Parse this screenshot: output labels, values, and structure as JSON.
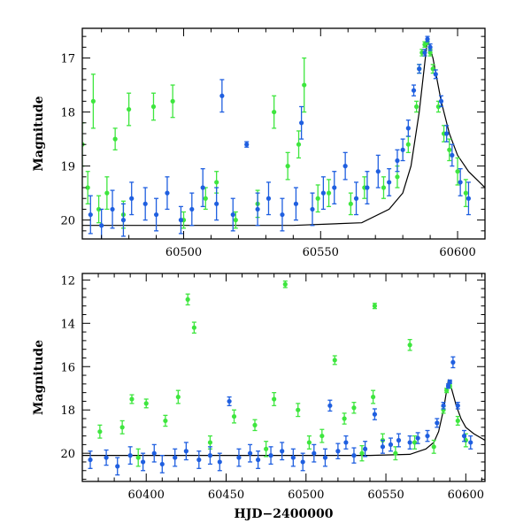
{
  "chart_data": [
    {
      "type": "scatter",
      "panel": "top",
      "xlabel": "",
      "ylabel": "Magnitude",
      "xlim": [
        60463,
        60610
      ],
      "ylim": [
        20.35,
        16.45
      ],
      "y_inverted": true,
      "xticks": [
        60500,
        60550,
        60600
      ],
      "yticks": [
        17,
        18,
        19,
        20
      ],
      "colors": {
        "green": "#3ee63e",
        "blue": "#1f5fe0",
        "model": "#000000"
      },
      "series": [
        {
          "marker": "green-errorbar-point",
          "x": [
            60463,
            60465,
            60467,
            60469,
            60472,
            60475,
            60478,
            60480,
            60489,
            60496,
            60500,
            60508,
            60512,
            60519,
            60527,
            60533,
            60538,
            60542,
            60544,
            60549,
            60553,
            60561,
            60566,
            60573,
            60578,
            60582,
            60585,
            60586,
            60587,
            60588,
            60589,
            60590,
            60591,
            60593,
            60595,
            60597,
            60600,
            60603
          ],
          "y": [
            18.6,
            19.4,
            17.8,
            19.8,
            19.5,
            18.5,
            19.9,
            17.95,
            17.9,
            17.8,
            20.0,
            19.6,
            19.3,
            20.0,
            19.7,
            18.0,
            19.0,
            18.6,
            17.5,
            19.6,
            19.5,
            19.7,
            19.4,
            19.4,
            19.2,
            18.6,
            17.9,
            17.2,
            16.9,
            16.75,
            16.7,
            16.9,
            17.2,
            17.9,
            18.4,
            18.7,
            19.1,
            19.5
          ],
          "yerr": [
            0.4,
            0.3,
            0.5,
            0.25,
            0.3,
            0.2,
            0.25,
            0.3,
            0.25,
            0.3,
            0.15,
            0.2,
            0.2,
            0.15,
            0.25,
            0.3,
            0.25,
            0.25,
            0.5,
            0.25,
            0.25,
            0.2,
            0.2,
            0.2,
            0.2,
            0.15,
            0.1,
            0.08,
            0.06,
            0.05,
            0.05,
            0.06,
            0.08,
            0.1,
            0.15,
            0.2,
            0.25,
            0.25
          ]
        },
        {
          "marker": "blue-errorbar-point",
          "x": [
            60466,
            60470,
            60474,
            60478,
            60481,
            60486,
            60490,
            60494,
            60499,
            60503,
            60507,
            60512,
            60514,
            60518,
            60523,
            60527,
            60531,
            60536,
            60541,
            60543,
            60547,
            60551,
            60555,
            60559,
            60563,
            60567,
            60571,
            60575,
            60578,
            60580,
            60582,
            60584,
            60586,
            60588,
            60589,
            60590,
            60592,
            60594,
            60596,
            60598,
            60601,
            60604
          ],
          "y": [
            19.9,
            20.1,
            19.8,
            20.0,
            19.6,
            19.7,
            19.9,
            19.5,
            20.0,
            19.8,
            19.4,
            19.7,
            17.7,
            19.9,
            18.6,
            19.8,
            19.6,
            19.9,
            19.7,
            18.2,
            19.8,
            19.5,
            19.4,
            19.0,
            19.6,
            19.4,
            19.1,
            19.3,
            18.9,
            18.7,
            18.3,
            17.6,
            17.2,
            16.9,
            16.65,
            16.8,
            17.3,
            17.8,
            18.4,
            18.8,
            19.3,
            19.6
          ],
          "yerr": [
            0.35,
            0.3,
            0.35,
            0.3,
            0.3,
            0.3,
            0.3,
            0.3,
            0.25,
            0.3,
            0.35,
            0.3,
            0.3,
            0.3,
            0.05,
            0.3,
            0.3,
            0.3,
            0.3,
            0.3,
            0.3,
            0.3,
            0.3,
            0.25,
            0.3,
            0.3,
            0.3,
            0.25,
            0.2,
            0.2,
            0.15,
            0.1,
            0.08,
            0.06,
            0.05,
            0.06,
            0.08,
            0.1,
            0.15,
            0.2,
            0.25,
            0.3
          ]
        },
        {
          "marker": "model-curve",
          "x": [
            60463,
            60500,
            60540,
            60565,
            60575,
            60580,
            60583,
            60586,
            60588,
            60589,
            60591,
            60594,
            60597,
            60600,
            60604,
            60610
          ],
          "y": [
            20.1,
            20.1,
            20.1,
            20.05,
            19.8,
            19.5,
            19.0,
            18.0,
            17.1,
            16.65,
            17.0,
            17.8,
            18.4,
            18.8,
            19.1,
            19.4
          ]
        }
      ]
    },
    {
      "type": "scatter",
      "panel": "bottom",
      "xlabel": "HJD−2400000",
      "ylabel": "Magnitude",
      "xlim": [
        60360,
        60612
      ],
      "ylim": [
        21.3,
        11.7
      ],
      "y_inverted": true,
      "xticks": [
        60400,
        60450,
        60500,
        60550,
        60600
      ],
      "yticks": [
        12,
        14,
        16,
        18,
        20
      ],
      "colors": {
        "green": "#3ee63e",
        "blue": "#1f5fe0",
        "model": "#000000"
      },
      "series": [
        {
          "marker": "green-errorbar-point",
          "x": [
            60371,
            60385,
            60391,
            60395,
            60400,
            60412,
            60420,
            60426,
            60430,
            60440,
            60455,
            60468,
            60475,
            60480,
            60487,
            60495,
            60502,
            60510,
            60518,
            60524,
            60530,
            60535,
            60542,
            60543,
            60548,
            60556,
            60565,
            60568,
            60580,
            60586,
            60588,
            60590,
            60595,
            60600
          ],
          "y": [
            19.0,
            18.8,
            17.5,
            20.2,
            17.7,
            18.5,
            17.4,
            12.9,
            14.2,
            19.5,
            18.3,
            18.7,
            19.8,
            17.5,
            12.2,
            18.0,
            19.5,
            19.2,
            15.7,
            18.4,
            17.9,
            20.0,
            17.4,
            13.2,
            19.4,
            20.0,
            15.0,
            19.5,
            19.7,
            18.0,
            17.1,
            16.9,
            18.5,
            19.4
          ],
          "yerr": [
            0.3,
            0.3,
            0.2,
            0.4,
            0.2,
            0.25,
            0.3,
            0.25,
            0.25,
            0.3,
            0.3,
            0.25,
            0.35,
            0.3,
            0.15,
            0.3,
            0.3,
            0.3,
            0.2,
            0.25,
            0.25,
            0.35,
            0.3,
            0.12,
            0.3,
            0.3,
            0.25,
            0.3,
            0.3,
            0.15,
            0.1,
            0.1,
            0.2,
            0.3
          ]
        },
        {
          "marker": "blue-errorbar-point",
          "x": [
            60365,
            60375,
            60382,
            60390,
            60398,
            60405,
            60410,
            60418,
            60425,
            60433,
            60440,
            60446,
            60452,
            60458,
            60465,
            60470,
            60478,
            60485,
            60492,
            60498,
            60505,
            60512,
            60515,
            60520,
            60525,
            60530,
            60537,
            60543,
            60548,
            60553,
            60558,
            60565,
            60570,
            60576,
            60582,
            60586,
            60589,
            60590,
            60592,
            60595,
            60599,
            60603
          ],
          "y": [
            20.3,
            20.2,
            20.6,
            20.1,
            20.4,
            20.0,
            20.5,
            20.2,
            19.9,
            20.3,
            20.1,
            20.4,
            17.6,
            20.2,
            20.0,
            20.3,
            20.1,
            19.9,
            20.2,
            20.4,
            20.0,
            20.2,
            17.8,
            19.9,
            19.5,
            20.1,
            19.8,
            18.2,
            19.7,
            19.6,
            19.4,
            19.5,
            19.3,
            19.2,
            18.6,
            17.8,
            16.9,
            16.7,
            15.8,
            17.8,
            19.2,
            19.5
          ],
          "yerr": [
            0.4,
            0.35,
            0.4,
            0.4,
            0.4,
            0.4,
            0.4,
            0.4,
            0.4,
            0.4,
            0.4,
            0.4,
            0.2,
            0.4,
            0.4,
            0.4,
            0.4,
            0.4,
            0.4,
            0.4,
            0.4,
            0.4,
            0.25,
            0.35,
            0.3,
            0.35,
            0.35,
            0.25,
            0.3,
            0.3,
            0.3,
            0.3,
            0.25,
            0.25,
            0.2,
            0.15,
            0.1,
            0.08,
            0.25,
            0.15,
            0.25,
            0.3
          ]
        },
        {
          "marker": "model-curve",
          "x": [
            60360,
            60450,
            60540,
            60565,
            60575,
            60580,
            60583,
            60586,
            60588,
            60589,
            60591,
            60594,
            60597,
            60600,
            60605,
            60612
          ],
          "y": [
            20.1,
            20.1,
            20.1,
            20.05,
            19.8,
            19.5,
            19.0,
            18.0,
            17.1,
            16.65,
            17.0,
            17.8,
            18.4,
            18.8,
            19.1,
            19.4
          ]
        }
      ]
    }
  ]
}
